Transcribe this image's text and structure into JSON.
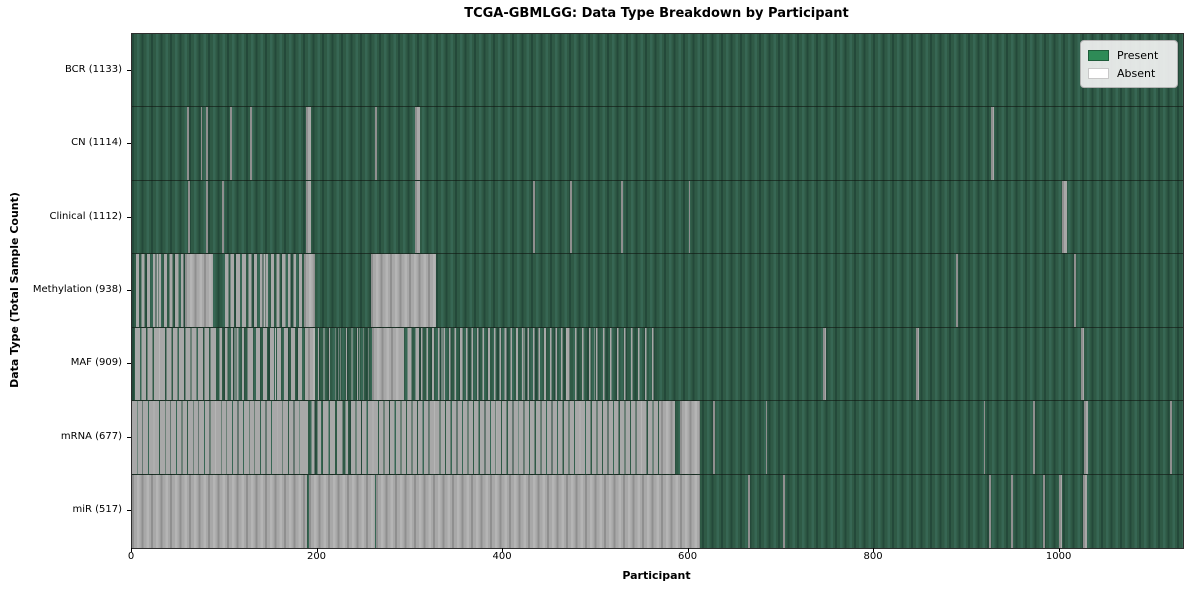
{
  "chart_data": {
    "type": "heatmap",
    "title": "TCGA-GBMLGG: Data Type Breakdown by Participant",
    "xlabel": "Participant",
    "ylabel": "Data Type (Total Sample Count)",
    "x_ticks": [
      0,
      200,
      400,
      600,
      800,
      1000
    ],
    "x_max": 1133,
    "grid": false,
    "legend_position": "upper right",
    "legend": [
      {
        "label": "Present",
        "color": "#2e8b57",
        "border": "#1e5c3a"
      },
      {
        "label": "Absent",
        "color": "#ffffff",
        "border": "#c8c8c8"
      }
    ],
    "colors": {
      "present_texture": [
        "#24493a",
        "#2f5a46",
        "#376754"
      ],
      "absent_texture": [
        "#8f8f8f",
        "#a8a8a8",
        "#b5b5b5"
      ]
    },
    "rows": [
      {
        "label": "BCR (1133)",
        "data_type": "BCR",
        "count": 1133,
        "segments": []
      },
      {
        "label": "CN (1114)",
        "data_type": "CN",
        "count": 1114,
        "segments": [
          {
            "start": 59,
            "end": 61,
            "state": "absent"
          },
          {
            "start": 74,
            "end": 76,
            "state": "absent"
          },
          {
            "start": 80,
            "end": 82,
            "state": "absent"
          },
          {
            "start": 106,
            "end": 108,
            "state": "absent"
          },
          {
            "start": 127,
            "end": 129,
            "state": "absent"
          },
          {
            "start": 188,
            "end": 193,
            "state": "absent"
          },
          {
            "start": 262,
            "end": 264,
            "state": "absent"
          },
          {
            "start": 305,
            "end": 310,
            "state": "absent"
          },
          {
            "start": 926,
            "end": 929,
            "state": "absent"
          }
        ]
      },
      {
        "label": "Clinical (1112)",
        "data_type": "Clinical",
        "count": 1112,
        "segments": [
          {
            "start": 60,
            "end": 62,
            "state": "absent"
          },
          {
            "start": 80,
            "end": 82,
            "state": "absent"
          },
          {
            "start": 97,
            "end": 99,
            "state": "absent"
          },
          {
            "start": 188,
            "end": 193,
            "state": "absent"
          },
          {
            "start": 305,
            "end": 310,
            "state": "absent"
          },
          {
            "start": 432,
            "end": 434,
            "state": "absent"
          },
          {
            "start": 472,
            "end": 474,
            "state": "absent"
          },
          {
            "start": 527,
            "end": 529,
            "state": "absent"
          },
          {
            "start": 600,
            "end": 602,
            "state": "absent"
          },
          {
            "start": 1003,
            "end": 1008,
            "state": "absent"
          }
        ]
      },
      {
        "label": "Methylation (938)",
        "data_type": "Methylation",
        "count": 938,
        "segments": [
          {
            "start": 4,
            "end": 57,
            "state": "mixed",
            "absent_fraction": 0.5
          },
          {
            "start": 57,
            "end": 87,
            "state": "absent"
          },
          {
            "start": 100,
            "end": 120,
            "state": "mixed",
            "absent_fraction": 0.65
          },
          {
            "start": 120,
            "end": 185,
            "state": "mixed",
            "absent_fraction": 0.5
          },
          {
            "start": 185,
            "end": 197,
            "state": "absent"
          },
          {
            "start": 258,
            "end": 328,
            "state": "absent"
          },
          {
            "start": 888,
            "end": 891,
            "state": "absent"
          },
          {
            "start": 1015,
            "end": 1018,
            "state": "absent"
          }
        ]
      },
      {
        "label": "MAF (909)",
        "data_type": "MAF",
        "count": 909,
        "segments": [
          {
            "start": 3,
            "end": 88,
            "state": "mixed",
            "absent_fraction": 0.78
          },
          {
            "start": 88,
            "end": 126,
            "state": "mixed",
            "absent_fraction": 0.4
          },
          {
            "start": 126,
            "end": 190,
            "state": "mixed",
            "absent_fraction": 0.55
          },
          {
            "start": 190,
            "end": 197,
            "state": "absent"
          },
          {
            "start": 200,
            "end": 259,
            "state": "mixed",
            "absent_fraction": 0.15
          },
          {
            "start": 259,
            "end": 289,
            "state": "absent"
          },
          {
            "start": 289,
            "end": 312,
            "state": "mixed",
            "absent_fraction": 0.5
          },
          {
            "start": 312,
            "end": 470,
            "state": "mixed",
            "absent_fraction": 0.28
          },
          {
            "start": 470,
            "end": 565,
            "state": "mixed",
            "absent_fraction": 0.18
          },
          {
            "start": 745,
            "end": 748,
            "state": "absent"
          },
          {
            "start": 845,
            "end": 848,
            "state": "absent"
          },
          {
            "start": 1023,
            "end": 1026,
            "state": "absent"
          }
        ]
      },
      {
        "label": "mRNA (677)",
        "data_type": "mRNA",
        "count": 677,
        "segments": [
          {
            "start": 0,
            "end": 187,
            "state": "mixed",
            "absent_fraction": 0.85
          },
          {
            "start": 187,
            "end": 206,
            "state": "mixed",
            "absent_fraction": 0.5
          },
          {
            "start": 206,
            "end": 224,
            "state": "mixed",
            "absent_fraction": 0.75
          },
          {
            "start": 224,
            "end": 236,
            "state": "mixed",
            "absent_fraction": 0.45
          },
          {
            "start": 236,
            "end": 570,
            "state": "mixed",
            "absent_fraction": 0.8
          },
          {
            "start": 570,
            "end": 585,
            "state": "absent"
          },
          {
            "start": 591,
            "end": 612,
            "state": "absent"
          },
          {
            "start": 626,
            "end": 628,
            "state": "absent"
          },
          {
            "start": 683,
            "end": 685,
            "state": "absent"
          },
          {
            "start": 918,
            "end": 920,
            "state": "absent"
          },
          {
            "start": 971,
            "end": 973,
            "state": "absent"
          },
          {
            "start": 1026,
            "end": 1031,
            "state": "absent"
          },
          {
            "start": 1119,
            "end": 1121,
            "state": "absent"
          }
        ]
      },
      {
        "label": "miR (517)",
        "data_type": "miR",
        "count": 517,
        "segments": [
          {
            "start": 0,
            "end": 189,
            "state": "absent"
          },
          {
            "start": 190.5,
            "end": 262,
            "state": "absent"
          },
          {
            "start": 263.5,
            "end": 612,
            "state": "absent"
          },
          {
            "start": 664,
            "end": 666,
            "state": "absent"
          },
          {
            "start": 702,
            "end": 704,
            "state": "absent"
          },
          {
            "start": 924,
            "end": 926,
            "state": "absent"
          },
          {
            "start": 948,
            "end": 950,
            "state": "absent"
          },
          {
            "start": 982,
            "end": 984,
            "state": "absent"
          },
          {
            "start": 999,
            "end": 1003,
            "state": "absent"
          },
          {
            "start": 1025,
            "end": 1029,
            "state": "absent"
          }
        ]
      }
    ]
  }
}
